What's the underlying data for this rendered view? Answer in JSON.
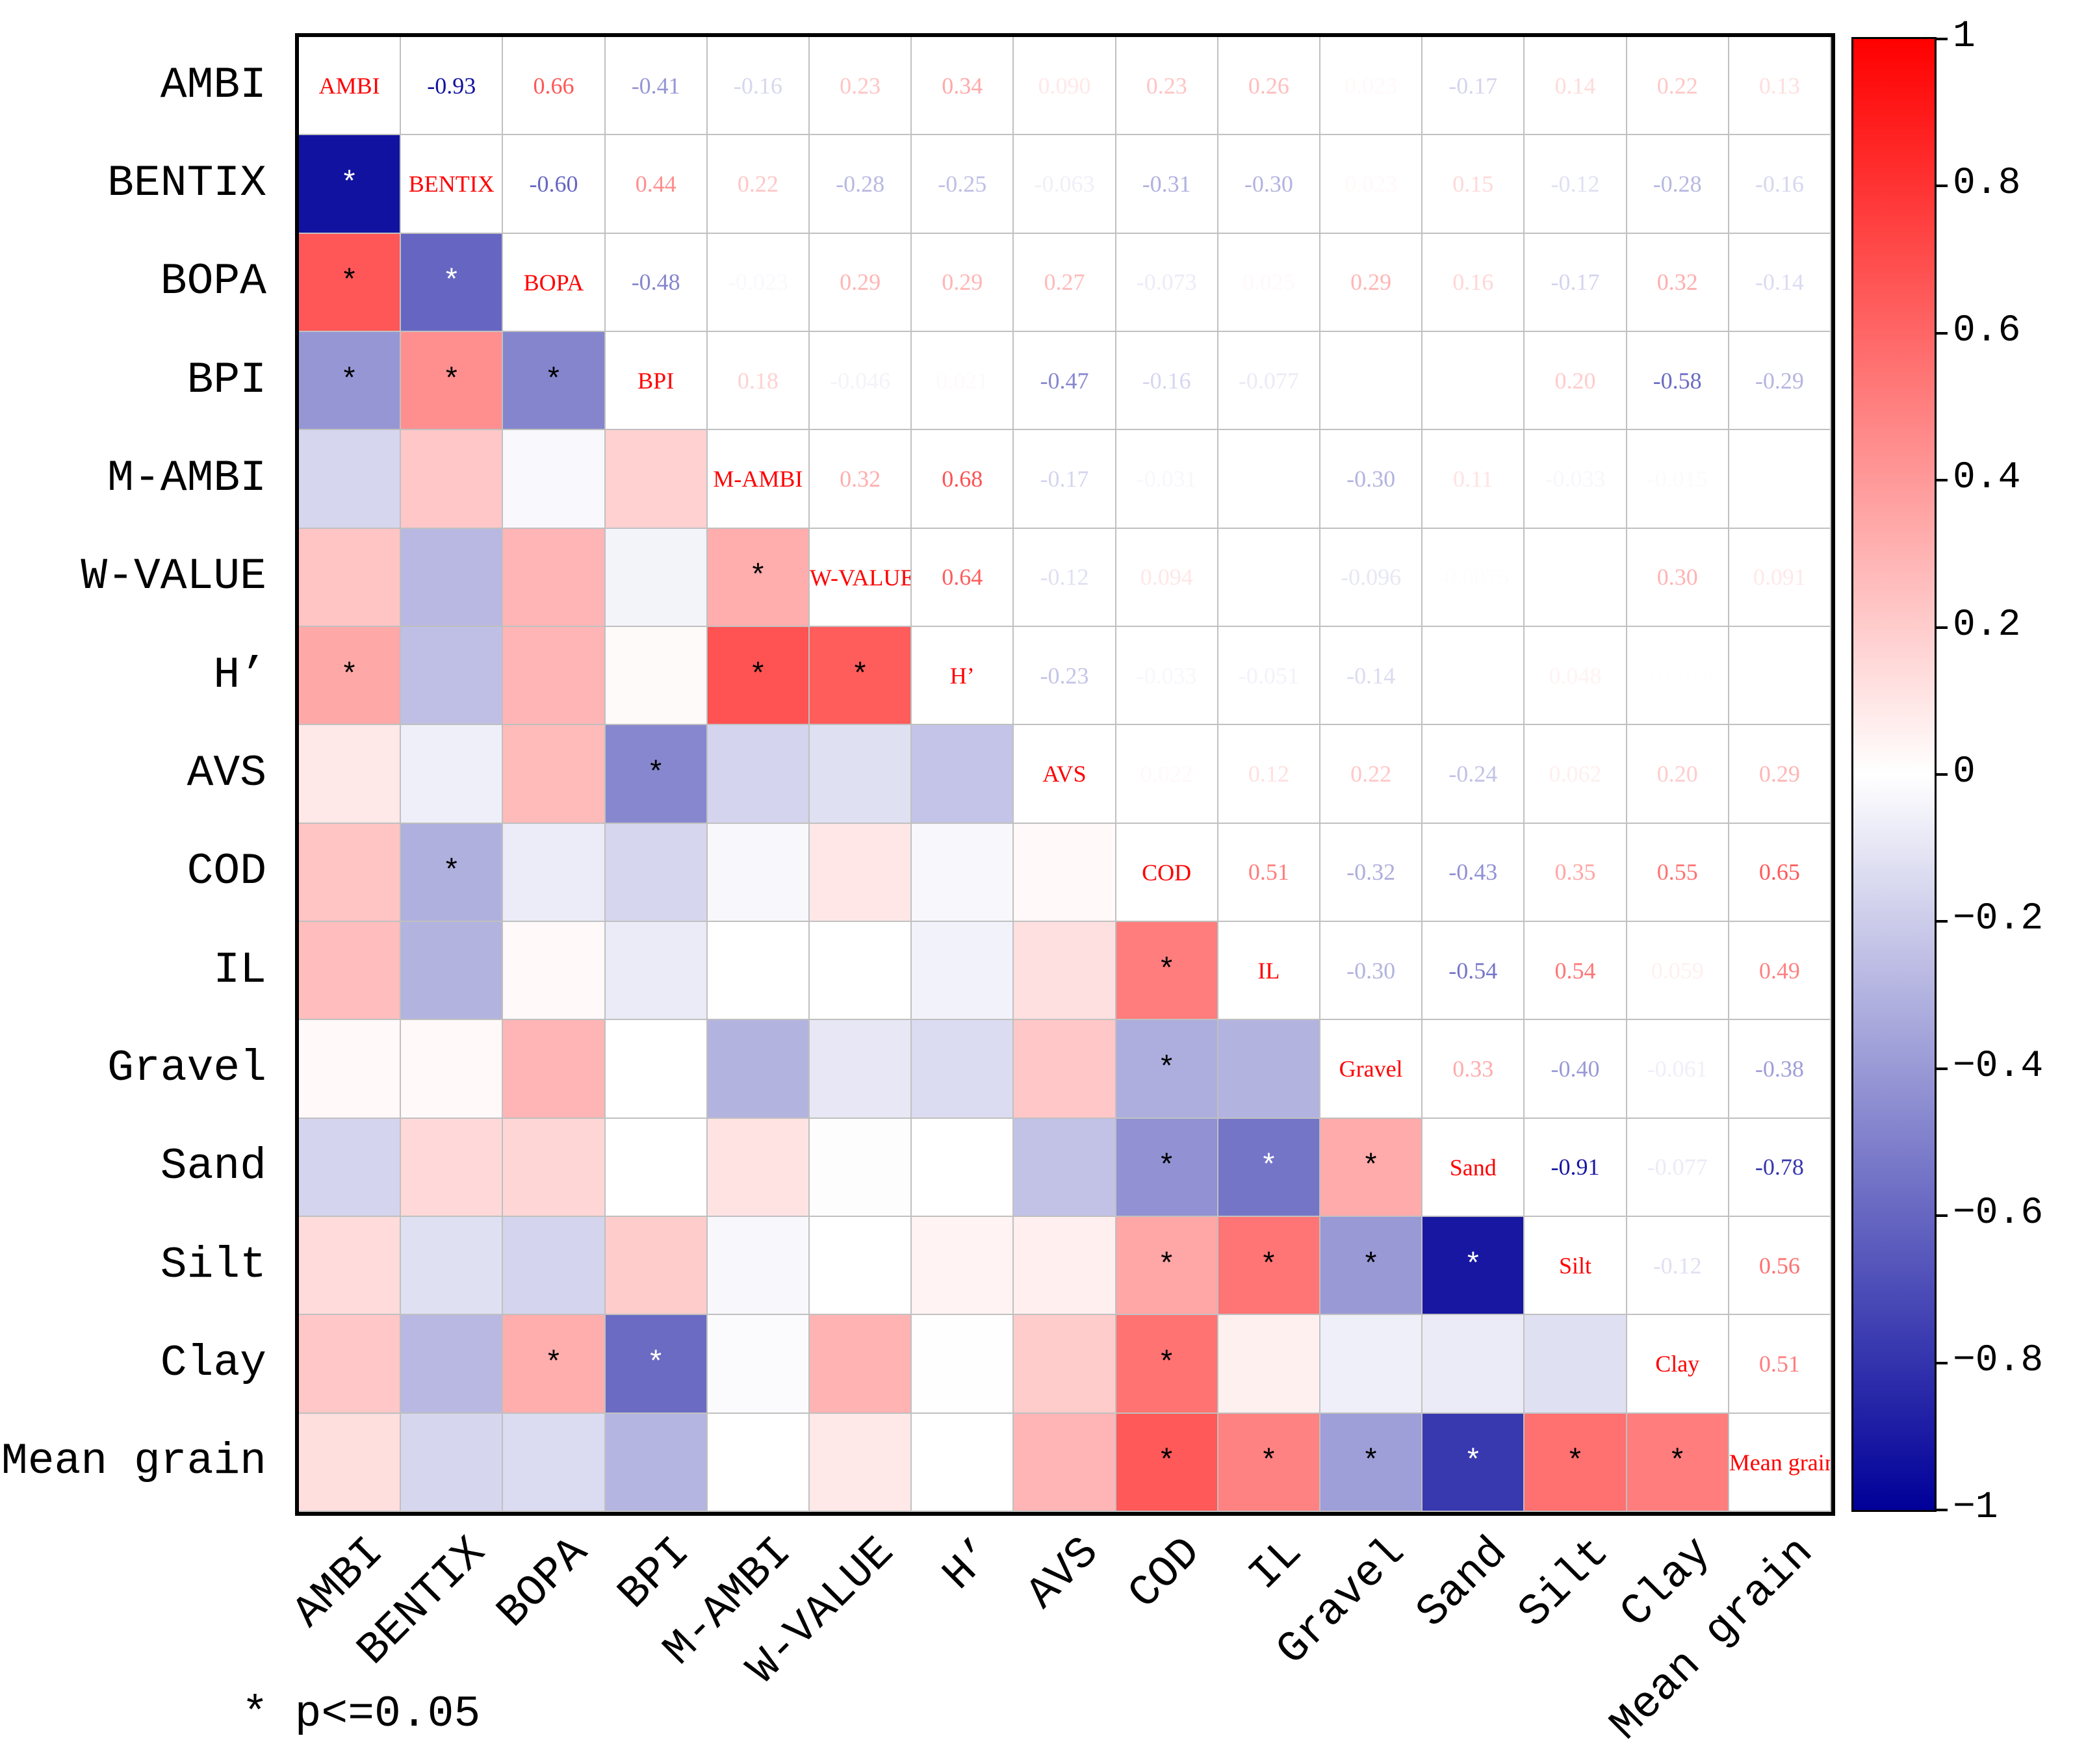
{
  "chart_data": {
    "type": "heatmap",
    "title": "",
    "labels": [
      "AMBI",
      "BENTIX",
      "BOPA",
      "BPI",
      "M-AMBI",
      "W-VALUE",
      "H’",
      "AVS",
      "COD",
      "IL",
      "Gravel",
      "Sand",
      "Silt",
      "Clay",
      "Mean grain"
    ],
    "upper_triangle_text": [
      [
        "-0.93",
        "0.66",
        "-0.41",
        "-0.16",
        "0.23",
        "0.34",
        "0.090",
        "0.23",
        "0.26",
        "0.023",
        "-0.17",
        "0.14",
        "0.22",
        "0.13"
      ],
      [
        "-0.60",
        "0.44",
        "0.22",
        "-0.28",
        "-0.25",
        "-0.063",
        "-0.31",
        "-0.30",
        "0.023",
        "0.15",
        "-0.12",
        "-0.28",
        "-0.16"
      ],
      [
        "-0.48",
        "-0.023",
        "0.29",
        "0.29",
        "0.27",
        "-0.073",
        "0.025",
        "0.29",
        "0.16",
        "-0.17",
        "0.32",
        "-0.14"
      ],
      [
        "0.18",
        "-0.046",
        "0.021",
        "-0.47",
        "-0.16",
        "-0.077",
        "-9.9E-4",
        "",
        "0.20",
        "-0.58",
        "-0.29"
      ],
      [
        "0.32",
        "0.68",
        "-0.17",
        "-0.031",
        "",
        "-0.30",
        "0.11",
        "-0.033",
        "-0.015",
        ""
      ],
      [
        "0.64",
        "-0.12",
        "0.094",
        "",
        "-0.096",
        "-0.0075",
        "",
        "0.30",
        "0.091"
      ],
      [
        "-0.23",
        "-0.033",
        "-0.051",
        "-0.14",
        "-9.4E-4",
        "0.048",
        "-0.0038",
        "-0.0017"
      ],
      [
        "0.022",
        "0.12",
        "0.22",
        "-0.24",
        "0.062",
        "0.20",
        "0.29"
      ],
      [
        "0.51",
        "-0.32",
        "-0.43",
        "0.35",
        "0.55",
        "0.65"
      ],
      [
        "-0.30",
        "-0.54",
        "0.54",
        "0.059",
        "0.49"
      ],
      [
        "0.33",
        "-0.40",
        "-0.061",
        "-0.38"
      ],
      [
        "-0.91",
        "-0.077",
        "-0.78"
      ],
      [
        "-0.12",
        "0.56"
      ],
      [
        "0.51"
      ],
      []
    ],
    "significant_pairs_lower": [
      [
        1,
        0
      ],
      [
        2,
        0
      ],
      [
        2,
        1
      ],
      [
        3,
        0
      ],
      [
        3,
        1
      ],
      [
        3,
        2
      ],
      [
        5,
        4
      ],
      [
        6,
        0
      ],
      [
        6,
        4
      ],
      [
        6,
        5
      ],
      [
        7,
        3
      ],
      [
        8,
        1
      ],
      [
        9,
        8
      ],
      [
        10,
        8
      ],
      [
        11,
        8
      ],
      [
        11,
        9
      ],
      [
        11,
        10
      ],
      [
        12,
        8
      ],
      [
        12,
        9
      ],
      [
        12,
        10
      ],
      [
        12,
        11
      ],
      [
        13,
        2
      ],
      [
        13,
        3
      ],
      [
        13,
        8
      ],
      [
        14,
        8
      ],
      [
        14,
        9
      ],
      [
        14,
        10
      ],
      [
        14,
        11
      ],
      [
        14,
        12
      ],
      [
        14,
        13
      ]
    ],
    "significance_marker": "*",
    "colorbar": {
      "range": [
        -1,
        1
      ],
      "ticks": [
        1,
        0.8,
        0.6,
        0.4,
        0.2,
        0,
        -0.2,
        -0.4,
        -0.6,
        -0.8,
        -1
      ],
      "tick_labels": [
        "1",
        "0.8",
        "0.6",
        "0.4",
        "0.2",
        "0",
        "−0.2",
        "−0.4",
        "−0.6",
        "−0.8",
        "−1"
      ],
      "colors": {
        "neg": "#000099",
        "mid": "#ffffff",
        "pos": "#ff0000"
      }
    },
    "legend_note": "* p<=0.05"
  }
}
